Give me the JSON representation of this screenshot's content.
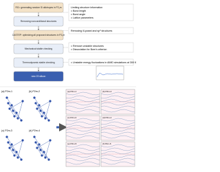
{
  "flowchart": {
    "steps": [
      "RG²: generating random Si allotropes in P2₁m",
      "Removing nonconditional structures",
      "CASTEP: optimizing all proposed structures in P2₁m",
      "Mechanical stable checking",
      "Thermodynamic stable checking",
      "new 23 silicon"
    ],
    "notes": [
      {
        "title": "Limiting structure information",
        "items": [
          "Bond length",
          "Bond angle",
          "Lattice parameters"
        ]
      },
      {
        "title": "Removing ill-posed and sp² structures",
        "items": []
      },
      {
        "title": "",
        "items": [
          "Remove unstable structures",
          "Dissociation for Born's criterion"
        ]
      },
      {
        "title": "",
        "items": [
          "Unstable energy fluctuations in AIMD simulations at 300 K"
        ]
      }
    ]
  },
  "structures": [
    "(a) P2m-1",
    "(b) P2m-2",
    "(c) P2m-3",
    "(d) P2m-4"
  ],
  "bands": [
    "(a) P2m-1",
    "(b) P2m-2",
    "(c) P2m-3",
    "(d) P2m-4",
    "(e) P2m-5",
    "(f) P2m-6"
  ]
}
